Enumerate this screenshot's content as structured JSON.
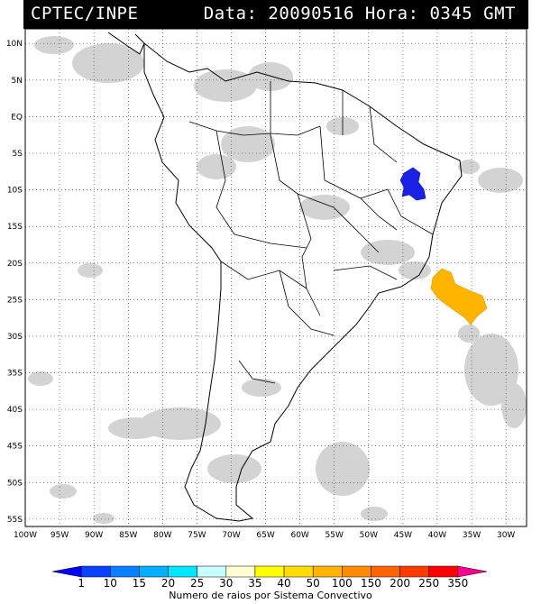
{
  "header": {
    "institution": "CPTEC/INPE",
    "datetime_text": "Data: 20090516 Hora: 0345 GMT"
  },
  "map": {
    "lat_labels": [
      "10N",
      "5N",
      "EQ",
      "5S",
      "10S",
      "15S",
      "20S",
      "25S",
      "30S",
      "35S",
      "40S",
      "45S",
      "50S",
      "55S"
    ],
    "lon_labels": [
      "100W",
      "95W",
      "90W",
      "85W",
      "80W",
      "75W",
      "70W",
      "65W",
      "60W",
      "55W",
      "50W",
      "45W",
      "40W",
      "35W",
      "30W"
    ],
    "lat_extent": [
      -56,
      12
    ],
    "lon_extent": [
      -100,
      -27
    ],
    "grid": "dotted 5 degree",
    "cloud_color": "#c8c8c8",
    "systems": [
      {
        "name": "convective system northeast Brazil",
        "lat": -9.5,
        "lon": -44.5,
        "lightning_class": "1",
        "color": "#1a22e6"
      },
      {
        "name": "convective system southeast Atlantic",
        "lat": -25.0,
        "lon": -38.5,
        "lightning_class": "50",
        "color": "#ffb400"
      }
    ]
  },
  "legend": {
    "ticks": [
      "1",
      "10",
      "15",
      "20",
      "25",
      "30",
      "35",
      "40",
      "50",
      "100",
      "150",
      "200",
      "250",
      "350"
    ],
    "colors": [
      "#0000ff",
      "#0a40ff",
      "#0a80ff",
      "#00b0ff",
      "#00e6ff",
      "#c8ffff",
      "#ffffd2",
      "#ffff00",
      "#ffdc00",
      "#ffb400",
      "#ff8c00",
      "#ff6400",
      "#ff3c00",
      "#ff0000",
      "#ff0090"
    ],
    "title": "Numero de raios por Sistema Convectivo"
  }
}
